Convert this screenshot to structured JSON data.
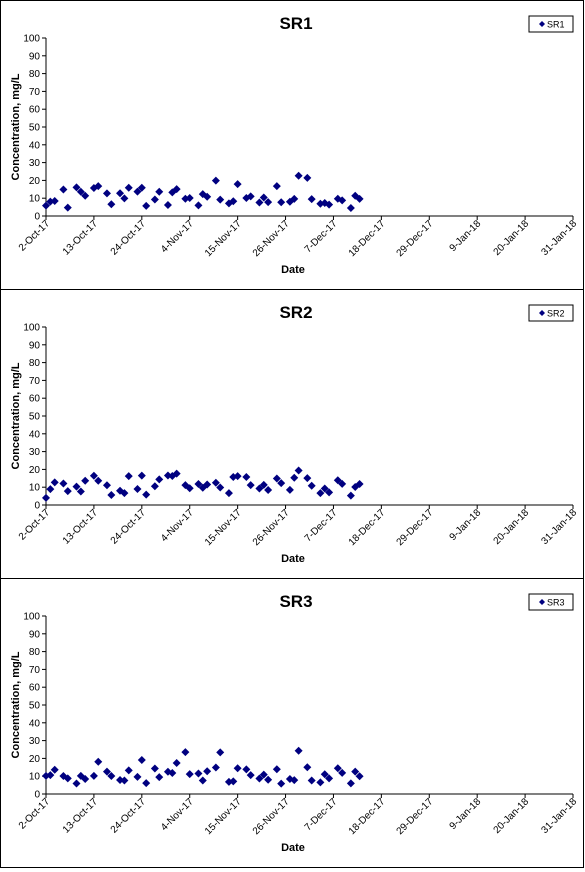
{
  "chart_data": [
    {
      "type": "scatter",
      "title": "SR1",
      "xlabel": "Date",
      "ylabel": "Concentration, mg/L",
      "ylim": [
        0,
        100
      ],
      "xlim": [
        "2017-10-02",
        "2018-01-31"
      ],
      "yticks": [
        0,
        10,
        20,
        30,
        40,
        50,
        60,
        70,
        80,
        90,
        100
      ],
      "xticks": [
        "2017-10-02",
        "2017-10-13",
        "2017-10-24",
        "2017-11-04",
        "2017-11-15",
        "2017-11-26",
        "2017-12-07",
        "2017-12-18",
        "2017-12-29",
        "2018-01-09",
        "2018-01-20",
        "2018-01-31"
      ],
      "xtick_labels": [
        "2-Oct-17",
        "13-Oct-17",
        "24-Oct-17",
        "4-Nov-17",
        "15-Nov-17",
        "26-Nov-17",
        "7-Dec-17",
        "18-Dec-17",
        "29-Dec-17",
        "9-Jan-18",
        "20-Jan-18",
        "31-Jan-18"
      ],
      "grid": false,
      "legend": "top-right",
      "series": [
        {
          "name": "SR1",
          "color": "#000080",
          "marker": "diamond",
          "points": [
            [
              "2017-10-02",
              5.8
            ],
            [
              "2017-10-03",
              8.1
            ],
            [
              "2017-10-04",
              8.4
            ],
            [
              "2017-10-06",
              14.9
            ],
            [
              "2017-10-07",
              4.7
            ],
            [
              "2017-10-09",
              16.1
            ],
            [
              "2017-10-10",
              13.6
            ],
            [
              "2017-10-11",
              11.4
            ],
            [
              "2017-10-13",
              15.7
            ],
            [
              "2017-10-14",
              16.8
            ],
            [
              "2017-10-16",
              12.7
            ],
            [
              "2017-10-17",
              6.6
            ],
            [
              "2017-10-19",
              12.8
            ],
            [
              "2017-10-20",
              9.9
            ],
            [
              "2017-10-21",
              15.9
            ],
            [
              "2017-10-23",
              13.7
            ],
            [
              "2017-10-24",
              15.9
            ],
            [
              "2017-10-25",
              5.7
            ],
            [
              "2017-10-27",
              9.3
            ],
            [
              "2017-10-28",
              13.6
            ],
            [
              "2017-10-30",
              6.2
            ],
            [
              "2017-10-31",
              13.3
            ],
            [
              "2017-11-01",
              15.1
            ],
            [
              "2017-11-03",
              9.7
            ],
            [
              "2017-11-04",
              10.1
            ],
            [
              "2017-11-06",
              6.0
            ],
            [
              "2017-11-07",
              12.3
            ],
            [
              "2017-11-08",
              10.8
            ],
            [
              "2017-11-10",
              19.9
            ],
            [
              "2017-11-11",
              9.2
            ],
            [
              "2017-11-13",
              7.1
            ],
            [
              "2017-11-14",
              8.3
            ],
            [
              "2017-11-15",
              17.9
            ],
            [
              "2017-11-17",
              10.1
            ],
            [
              "2017-11-18",
              11.0
            ],
            [
              "2017-11-20",
              7.6
            ],
            [
              "2017-11-21",
              10.4
            ],
            [
              "2017-11-22",
              7.8
            ],
            [
              "2017-11-24",
              16.8
            ],
            [
              "2017-11-25",
              7.7
            ],
            [
              "2017-11-27",
              8.0
            ],
            [
              "2017-11-28",
              9.6
            ],
            [
              "2017-11-29",
              22.6
            ],
            [
              "2017-12-01",
              21.4
            ],
            [
              "2017-12-02",
              9.5
            ],
            [
              "2017-12-04",
              6.9
            ],
            [
              "2017-12-05",
              7.3
            ],
            [
              "2017-12-06",
              6.4
            ],
            [
              "2017-12-08",
              9.7
            ],
            [
              "2017-12-09",
              8.8
            ],
            [
              "2017-12-11",
              4.5
            ],
            [
              "2017-12-12",
              11.4
            ],
            [
              "2017-12-13",
              9.6
            ]
          ]
        }
      ]
    },
    {
      "type": "scatter",
      "title": "SR2",
      "xlabel": "Date",
      "ylabel": "Concentration, mg/L",
      "ylim": [
        0,
        100
      ],
      "xlim": [
        "2017-10-02",
        "2018-01-31"
      ],
      "yticks": [
        0,
        10,
        20,
        30,
        40,
        50,
        60,
        70,
        80,
        90,
        100
      ],
      "xticks": [
        "2017-10-02",
        "2017-10-13",
        "2017-10-24",
        "2017-11-04",
        "2017-11-15",
        "2017-11-26",
        "2017-12-07",
        "2017-12-18",
        "2017-12-29",
        "2018-01-09",
        "2018-01-20",
        "2018-01-31"
      ],
      "xtick_labels": [
        "2-Oct-17",
        "13-Oct-17",
        "24-Oct-17",
        "4-Nov-17",
        "15-Nov-17",
        "26-Nov-17",
        "7-Dec-17",
        "18-Dec-17",
        "29-Dec-17",
        "9-Jan-18",
        "20-Jan-18",
        "31-Jan-18"
      ],
      "grid": false,
      "legend": "top-right",
      "series": [
        {
          "name": "SR2",
          "color": "#000080",
          "marker": "diamond",
          "points": [
            [
              "2017-10-02",
              4.0
            ],
            [
              "2017-10-03",
              8.9
            ],
            [
              "2017-10-04",
              12.7
            ],
            [
              "2017-10-06",
              12.1
            ],
            [
              "2017-10-07",
              7.8
            ],
            [
              "2017-10-09",
              10.3
            ],
            [
              "2017-10-10",
              7.6
            ],
            [
              "2017-10-11",
              13.6
            ],
            [
              "2017-10-13",
              16.4
            ],
            [
              "2017-10-14",
              13.6
            ],
            [
              "2017-10-16",
              11.1
            ],
            [
              "2017-10-17",
              5.6
            ],
            [
              "2017-10-19",
              8.0
            ],
            [
              "2017-10-20",
              6.7
            ],
            [
              "2017-10-21",
              16.2
            ],
            [
              "2017-10-23",
              9.0
            ],
            [
              "2017-10-24",
              16.5
            ],
            [
              "2017-10-25",
              5.8
            ],
            [
              "2017-10-27",
              10.5
            ],
            [
              "2017-10-28",
              14.4
            ],
            [
              "2017-10-30",
              16.6
            ],
            [
              "2017-10-31",
              16.3
            ],
            [
              "2017-11-01",
              17.6
            ],
            [
              "2017-11-03",
              11.2
            ],
            [
              "2017-11-04",
              9.4
            ],
            [
              "2017-11-06",
              11.8
            ],
            [
              "2017-11-07",
              9.7
            ],
            [
              "2017-11-08",
              11.5
            ],
            [
              "2017-11-10",
              12.5
            ],
            [
              "2017-11-11",
              9.8
            ],
            [
              "2017-11-13",
              6.7
            ],
            [
              "2017-11-14",
              15.7
            ],
            [
              "2017-11-15",
              16.2
            ],
            [
              "2017-11-17",
              15.7
            ],
            [
              "2017-11-18",
              11.2
            ],
            [
              "2017-11-20",
              9.3
            ],
            [
              "2017-11-21",
              11.3
            ],
            [
              "2017-11-22",
              8.4
            ],
            [
              "2017-11-24",
              14.9
            ],
            [
              "2017-11-25",
              12.3
            ],
            [
              "2017-11-27",
              8.5
            ],
            [
              "2017-11-28",
              15.3
            ],
            [
              "2017-11-29",
              19.4
            ],
            [
              "2017-12-01",
              15.1
            ],
            [
              "2017-12-02",
              10.8
            ],
            [
              "2017-12-04",
              6.7
            ],
            [
              "2017-12-05",
              9.3
            ],
            [
              "2017-12-06",
              7.1
            ],
            [
              "2017-12-08",
              13.9
            ],
            [
              "2017-12-09",
              11.9
            ],
            [
              "2017-12-11",
              5.3
            ],
            [
              "2017-12-12",
              10.1
            ],
            [
              "2017-12-13",
              11.8
            ]
          ]
        }
      ]
    },
    {
      "type": "scatter",
      "title": "SR3",
      "xlabel": "Date",
      "ylabel": "Concentration, mg/L",
      "ylim": [
        0,
        100
      ],
      "xlim": [
        "2017-10-02",
        "2018-01-31"
      ],
      "yticks": [
        0,
        10,
        20,
        30,
        40,
        50,
        60,
        70,
        80,
        90,
        100
      ],
      "xticks": [
        "2017-10-02",
        "2017-10-13",
        "2017-10-24",
        "2017-11-04",
        "2017-11-15",
        "2017-11-26",
        "2017-12-07",
        "2017-12-18",
        "2017-12-29",
        "2018-01-09",
        "2018-01-20",
        "2018-01-31"
      ],
      "xtick_labels": [
        "2-Oct-17",
        "13-Oct-17",
        "24-Oct-17",
        "4-Nov-17",
        "15-Nov-17",
        "26-Nov-17",
        "7-Dec-17",
        "18-Dec-17",
        "29-Dec-17",
        "9-Jan-18",
        "20-Jan-18",
        "31-Jan-18"
      ],
      "grid": false,
      "legend": "top-right",
      "series": [
        {
          "name": "SR3",
          "color": "#000080",
          "marker": "diamond",
          "points": [
            [
              "2017-10-02",
              10.2
            ],
            [
              "2017-10-03",
              10.6
            ],
            [
              "2017-10-04",
              13.6
            ],
            [
              "2017-10-06",
              10.1
            ],
            [
              "2017-10-07",
              8.8
            ],
            [
              "2017-10-09",
              5.9
            ],
            [
              "2017-10-10",
              10.2
            ],
            [
              "2017-10-11",
              8.4
            ],
            [
              "2017-10-13",
              10.2
            ],
            [
              "2017-10-14",
              18.1
            ],
            [
              "2017-10-16",
              12.6
            ],
            [
              "2017-10-17",
              10.1
            ],
            [
              "2017-10-19",
              7.9
            ],
            [
              "2017-10-20",
              7.6
            ],
            [
              "2017-10-21",
              13.3
            ],
            [
              "2017-10-23",
              9.6
            ],
            [
              "2017-10-24",
              19.1
            ],
            [
              "2017-10-25",
              6.1
            ],
            [
              "2017-10-27",
              14.3
            ],
            [
              "2017-10-28",
              9.5
            ],
            [
              "2017-10-30",
              12.5
            ],
            [
              "2017-10-31",
              11.8
            ],
            [
              "2017-11-01",
              17.4
            ],
            [
              "2017-11-03",
              23.5
            ],
            [
              "2017-11-04",
              11.2
            ],
            [
              "2017-11-06",
              11.5
            ],
            [
              "2017-11-07",
              7.6
            ],
            [
              "2017-11-08",
              12.8
            ],
            [
              "2017-11-10",
              14.9
            ],
            [
              "2017-11-11",
              23.4
            ],
            [
              "2017-11-13",
              6.8
            ],
            [
              "2017-11-14",
              7.1
            ],
            [
              "2017-11-15",
              14.5
            ],
            [
              "2017-11-17",
              13.8
            ],
            [
              "2017-11-18",
              10.6
            ],
            [
              "2017-11-20",
              8.7
            ],
            [
              "2017-11-21",
              10.9
            ],
            [
              "2017-11-22",
              8.0
            ],
            [
              "2017-11-24",
              13.9
            ],
            [
              "2017-11-25",
              5.8
            ],
            [
              "2017-11-27",
              8.4
            ],
            [
              "2017-11-28",
              7.8
            ],
            [
              "2017-11-29",
              24.3
            ],
            [
              "2017-12-01",
              15.0
            ],
            [
              "2017-12-02",
              7.6
            ],
            [
              "2017-12-04",
              6.5
            ],
            [
              "2017-12-05",
              11.1
            ],
            [
              "2017-12-06",
              8.8
            ],
            [
              "2017-12-08",
              14.5
            ],
            [
              "2017-12-09",
              11.9
            ],
            [
              "2017-12-11",
              6.0
            ],
            [
              "2017-12-12",
              12.6
            ],
            [
              "2017-12-13",
              10.0
            ]
          ]
        }
      ]
    }
  ]
}
